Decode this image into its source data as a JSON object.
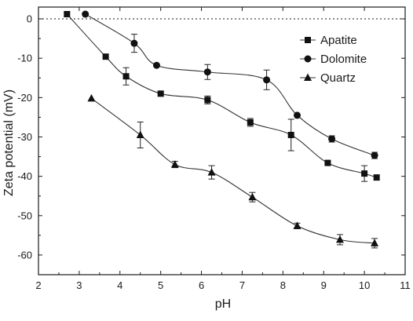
{
  "chart_data": {
    "type": "line",
    "xlabel": "pH",
    "ylabel": "Zeta potential (mV)",
    "xlim": [
      2,
      11
    ],
    "ylim": [
      -65,
      3
    ],
    "xticks": [
      2,
      3,
      4,
      5,
      6,
      7,
      8,
      9,
      10,
      11
    ],
    "yticks": [
      0,
      -10,
      -20,
      -30,
      -40,
      -50,
      -60
    ],
    "zero_line": true,
    "legend_position": "top-right",
    "grid": false,
    "series": [
      {
        "name": "Apatite",
        "marker": "square",
        "points": [
          {
            "x": 2.7,
            "y": 1.2,
            "err": 0.6
          },
          {
            "x": 3.65,
            "y": -9.6,
            "err": 0
          },
          {
            "x": 4.15,
            "y": -14.6,
            "err": 2.2
          },
          {
            "x": 5.0,
            "y": -19.0,
            "err": 0
          },
          {
            "x": 6.15,
            "y": -20.6,
            "err": 1.0
          },
          {
            "x": 7.2,
            "y": -26.3,
            "err": 1.0
          },
          {
            "x": 8.2,
            "y": -29.5,
            "err": 4.0
          },
          {
            "x": 9.1,
            "y": -36.6,
            "err": 0
          },
          {
            "x": 10.0,
            "y": -39.3,
            "err": 2.0
          },
          {
            "x": 10.3,
            "y": -40.3,
            "err": 0
          }
        ]
      },
      {
        "name": "Dolomite",
        "marker": "circle",
        "points": [
          {
            "x": 3.15,
            "y": 1.2,
            "err": 0
          },
          {
            "x": 4.35,
            "y": -6.2,
            "err": 2.3
          },
          {
            "x": 4.9,
            "y": -11.8,
            "err": 0
          },
          {
            "x": 6.15,
            "y": -13.5,
            "err": 1.9
          },
          {
            "x": 7.6,
            "y": -15.5,
            "err": 2.5
          },
          {
            "x": 8.35,
            "y": -24.5,
            "err": 0
          },
          {
            "x": 9.2,
            "y": -30.5,
            "err": 0.8
          },
          {
            "x": 10.25,
            "y": -34.7,
            "err": 0.8
          }
        ]
      },
      {
        "name": "Quartz",
        "marker": "triangle",
        "points": [
          {
            "x": 3.3,
            "y": -20.2,
            "err": 0
          },
          {
            "x": 4.5,
            "y": -29.5,
            "err": 3.3
          },
          {
            "x": 5.35,
            "y": -37.0,
            "err": 0.8
          },
          {
            "x": 6.25,
            "y": -39.0,
            "err": 1.7
          },
          {
            "x": 7.25,
            "y": -45.3,
            "err": 1.2
          },
          {
            "x": 8.35,
            "y": -52.6,
            "err": 0.7
          },
          {
            "x": 9.4,
            "y": -56.1,
            "err": 1.3
          },
          {
            "x": 10.25,
            "y": -57.0,
            "err": 1.2
          }
        ]
      }
    ]
  }
}
